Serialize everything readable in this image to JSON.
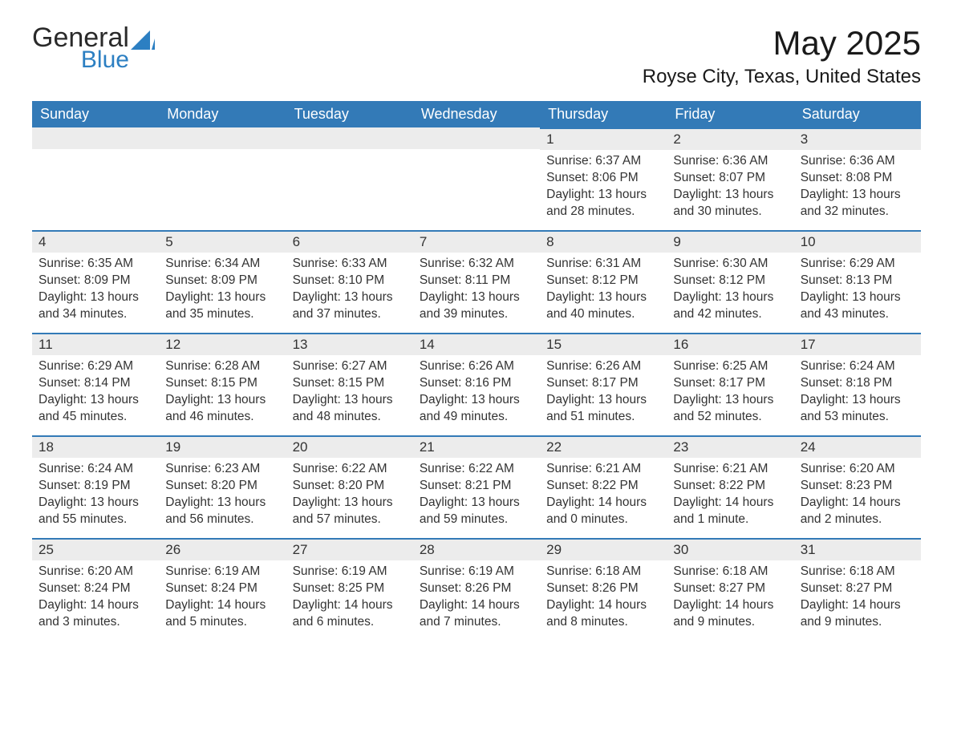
{
  "logo": {
    "general": "General",
    "blue": "Blue"
  },
  "title": "May 2025",
  "location": "Royse City, Texas, United States",
  "colors": {
    "header_bg": "#337ab7",
    "header_text": "#ffffff",
    "daybar_bg": "#ececec",
    "daybar_border": "#337ab7",
    "body_text": "#333333",
    "logo_blue": "#2c7fc2"
  },
  "weekdays": [
    "Sunday",
    "Monday",
    "Tuesday",
    "Wednesday",
    "Thursday",
    "Friday",
    "Saturday"
  ],
  "weeks": [
    [
      null,
      null,
      null,
      null,
      {
        "n": "1",
        "sunrise": "Sunrise: 6:37 AM",
        "sunset": "Sunset: 8:06 PM",
        "daylight": "Daylight: 13 hours and 28 minutes."
      },
      {
        "n": "2",
        "sunrise": "Sunrise: 6:36 AM",
        "sunset": "Sunset: 8:07 PM",
        "daylight": "Daylight: 13 hours and 30 minutes."
      },
      {
        "n": "3",
        "sunrise": "Sunrise: 6:36 AM",
        "sunset": "Sunset: 8:08 PM",
        "daylight": "Daylight: 13 hours and 32 minutes."
      }
    ],
    [
      {
        "n": "4",
        "sunrise": "Sunrise: 6:35 AM",
        "sunset": "Sunset: 8:09 PM",
        "daylight": "Daylight: 13 hours and 34 minutes."
      },
      {
        "n": "5",
        "sunrise": "Sunrise: 6:34 AM",
        "sunset": "Sunset: 8:09 PM",
        "daylight": "Daylight: 13 hours and 35 minutes."
      },
      {
        "n": "6",
        "sunrise": "Sunrise: 6:33 AM",
        "sunset": "Sunset: 8:10 PM",
        "daylight": "Daylight: 13 hours and 37 minutes."
      },
      {
        "n": "7",
        "sunrise": "Sunrise: 6:32 AM",
        "sunset": "Sunset: 8:11 PM",
        "daylight": "Daylight: 13 hours and 39 minutes."
      },
      {
        "n": "8",
        "sunrise": "Sunrise: 6:31 AM",
        "sunset": "Sunset: 8:12 PM",
        "daylight": "Daylight: 13 hours and 40 minutes."
      },
      {
        "n": "9",
        "sunrise": "Sunrise: 6:30 AM",
        "sunset": "Sunset: 8:12 PM",
        "daylight": "Daylight: 13 hours and 42 minutes."
      },
      {
        "n": "10",
        "sunrise": "Sunrise: 6:29 AM",
        "sunset": "Sunset: 8:13 PM",
        "daylight": "Daylight: 13 hours and 43 minutes."
      }
    ],
    [
      {
        "n": "11",
        "sunrise": "Sunrise: 6:29 AM",
        "sunset": "Sunset: 8:14 PM",
        "daylight": "Daylight: 13 hours and 45 minutes."
      },
      {
        "n": "12",
        "sunrise": "Sunrise: 6:28 AM",
        "sunset": "Sunset: 8:15 PM",
        "daylight": "Daylight: 13 hours and 46 minutes."
      },
      {
        "n": "13",
        "sunrise": "Sunrise: 6:27 AM",
        "sunset": "Sunset: 8:15 PM",
        "daylight": "Daylight: 13 hours and 48 minutes."
      },
      {
        "n": "14",
        "sunrise": "Sunrise: 6:26 AM",
        "sunset": "Sunset: 8:16 PM",
        "daylight": "Daylight: 13 hours and 49 minutes."
      },
      {
        "n": "15",
        "sunrise": "Sunrise: 6:26 AM",
        "sunset": "Sunset: 8:17 PM",
        "daylight": "Daylight: 13 hours and 51 minutes."
      },
      {
        "n": "16",
        "sunrise": "Sunrise: 6:25 AM",
        "sunset": "Sunset: 8:17 PM",
        "daylight": "Daylight: 13 hours and 52 minutes."
      },
      {
        "n": "17",
        "sunrise": "Sunrise: 6:24 AM",
        "sunset": "Sunset: 8:18 PM",
        "daylight": "Daylight: 13 hours and 53 minutes."
      }
    ],
    [
      {
        "n": "18",
        "sunrise": "Sunrise: 6:24 AM",
        "sunset": "Sunset: 8:19 PM",
        "daylight": "Daylight: 13 hours and 55 minutes."
      },
      {
        "n": "19",
        "sunrise": "Sunrise: 6:23 AM",
        "sunset": "Sunset: 8:20 PM",
        "daylight": "Daylight: 13 hours and 56 minutes."
      },
      {
        "n": "20",
        "sunrise": "Sunrise: 6:22 AM",
        "sunset": "Sunset: 8:20 PM",
        "daylight": "Daylight: 13 hours and 57 minutes."
      },
      {
        "n": "21",
        "sunrise": "Sunrise: 6:22 AM",
        "sunset": "Sunset: 8:21 PM",
        "daylight": "Daylight: 13 hours and 59 minutes."
      },
      {
        "n": "22",
        "sunrise": "Sunrise: 6:21 AM",
        "sunset": "Sunset: 8:22 PM",
        "daylight": "Daylight: 14 hours and 0 minutes."
      },
      {
        "n": "23",
        "sunrise": "Sunrise: 6:21 AM",
        "sunset": "Sunset: 8:22 PM",
        "daylight": "Daylight: 14 hours and 1 minute."
      },
      {
        "n": "24",
        "sunrise": "Sunrise: 6:20 AM",
        "sunset": "Sunset: 8:23 PM",
        "daylight": "Daylight: 14 hours and 2 minutes."
      }
    ],
    [
      {
        "n": "25",
        "sunrise": "Sunrise: 6:20 AM",
        "sunset": "Sunset: 8:24 PM",
        "daylight": "Daylight: 14 hours and 3 minutes."
      },
      {
        "n": "26",
        "sunrise": "Sunrise: 6:19 AM",
        "sunset": "Sunset: 8:24 PM",
        "daylight": "Daylight: 14 hours and 5 minutes."
      },
      {
        "n": "27",
        "sunrise": "Sunrise: 6:19 AM",
        "sunset": "Sunset: 8:25 PM",
        "daylight": "Daylight: 14 hours and 6 minutes."
      },
      {
        "n": "28",
        "sunrise": "Sunrise: 6:19 AM",
        "sunset": "Sunset: 8:26 PM",
        "daylight": "Daylight: 14 hours and 7 minutes."
      },
      {
        "n": "29",
        "sunrise": "Sunrise: 6:18 AM",
        "sunset": "Sunset: 8:26 PM",
        "daylight": "Daylight: 14 hours and 8 minutes."
      },
      {
        "n": "30",
        "sunrise": "Sunrise: 6:18 AM",
        "sunset": "Sunset: 8:27 PM",
        "daylight": "Daylight: 14 hours and 9 minutes."
      },
      {
        "n": "31",
        "sunrise": "Sunrise: 6:18 AM",
        "sunset": "Sunset: 8:27 PM",
        "daylight": "Daylight: 14 hours and 9 minutes."
      }
    ]
  ]
}
